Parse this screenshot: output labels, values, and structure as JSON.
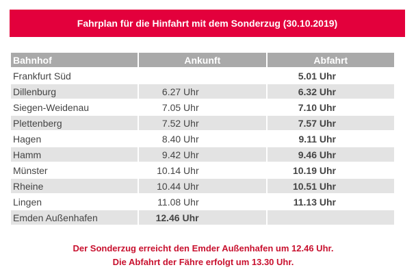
{
  "title": "Fahrplan für die Hinfahrt mit dem Sonderzug (30.10.2019)",
  "colors": {
    "title_bg": "#e3003c",
    "header_bg": "#a9a9a9",
    "row_shade": "#e3e3e3",
    "note_text": "#c8102e"
  },
  "table": {
    "headers": {
      "station": "Bahnhof",
      "arrival": "Ankunft",
      "departure": "Abfahrt"
    },
    "rows": [
      {
        "station": "Frankfurt Süd",
        "arrival": "",
        "departure": "5.01 Uhr"
      },
      {
        "station": "Dillenburg",
        "arrival": "6.27 Uhr",
        "departure": "6.32 Uhr"
      },
      {
        "station": "Siegen-Weidenau",
        "arrival": "7.05 Uhr",
        "departure": "7.10 Uhr"
      },
      {
        "station": "Plettenberg",
        "arrival": "7.52 Uhr",
        "departure": "7.57 Uhr"
      },
      {
        "station": "Hagen",
        "arrival": "8.40 Uhr",
        "departure": "9.11 Uhr"
      },
      {
        "station": "Hamm",
        "arrival": "9.42 Uhr",
        "departure": "9.46 Uhr"
      },
      {
        "station": "Münster",
        "arrival": "10.14 Uhr",
        "departure": "10.19 Uhr"
      },
      {
        "station": "Rheine",
        "arrival": "10.44 Uhr",
        "departure": "10.51 Uhr"
      },
      {
        "station": "Lingen",
        "arrival": "11.08 Uhr",
        "departure": "11.13 Uhr"
      },
      {
        "station": "Emden Außenhafen",
        "arrival": "12.46 Uhr",
        "departure": ""
      }
    ]
  },
  "notes": {
    "line1": "Der Sonderzug erreicht den Emder Außenhafen um 12.46 Uhr.",
    "line2": "Die Abfahrt der Fähre erfolgt um 13.30 Uhr."
  }
}
